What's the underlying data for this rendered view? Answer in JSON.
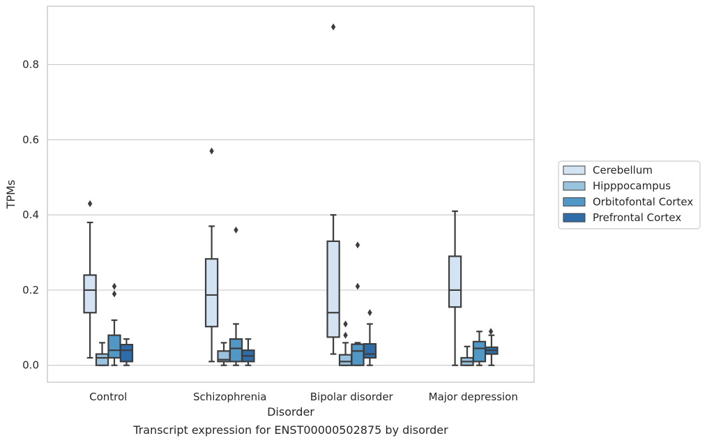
{
  "chart_data": {
    "type": "box",
    "title": "",
    "caption": "Transcript expression for ENST00000502875 by disorder",
    "xlabel": "Disorder",
    "ylabel": "TPMs",
    "ylim": [
      -0.045,
      0.955
    ],
    "yticks": [
      "0.0",
      "0.2",
      "0.4",
      "0.6",
      "0.8"
    ],
    "ytick_values": [
      0.0,
      0.2,
      0.4,
      0.6,
      0.8
    ],
    "grid": "horizontal",
    "legend_position": "right",
    "categories": [
      "Control",
      "Schizophrenia",
      "Bipolar disorder",
      "Major depression"
    ],
    "series": [
      {
        "name": "Cerebellum",
        "color": "#d4e3f3",
        "boxes": [
          {
            "whisker_low": 0.02,
            "q1": 0.14,
            "median": 0.2,
            "q3": 0.24,
            "whisker_high": 0.38,
            "outliers": [
              0.43
            ]
          },
          {
            "whisker_low": 0.01,
            "q1": 0.103,
            "median": 0.187,
            "q3": 0.283,
            "whisker_high": 0.37,
            "outliers": [
              0.57
            ]
          },
          {
            "whisker_low": 0.03,
            "q1": 0.075,
            "median": 0.14,
            "q3": 0.33,
            "whisker_high": 0.4,
            "outliers": [
              0.9
            ]
          },
          {
            "whisker_low": 0.0,
            "q1": 0.155,
            "median": 0.2,
            "q3": 0.29,
            "whisker_high": 0.41,
            "outliers": []
          }
        ]
      },
      {
        "name": "Hipppocampus",
        "color": "#9ac3df",
        "boxes": [
          {
            "whisker_low": 0.0,
            "q1": 0.0,
            "median": 0.02,
            "q3": 0.03,
            "whisker_high": 0.06,
            "outliers": []
          },
          {
            "whisker_low": 0.0,
            "q1": 0.01,
            "median": 0.015,
            "q3": 0.038,
            "whisker_high": 0.06,
            "outliers": []
          },
          {
            "whisker_low": 0.0,
            "q1": 0.0,
            "median": 0.01,
            "q3": 0.028,
            "whisker_high": 0.06,
            "outliers": [
              0.08,
              0.11
            ]
          },
          {
            "whisker_low": 0.0,
            "q1": 0.0,
            "median": 0.01,
            "q3": 0.02,
            "whisker_high": 0.05,
            "outliers": []
          }
        ]
      },
      {
        "name": "Orbitofontal Cortex",
        "color": "#5198c6",
        "boxes": [
          {
            "whisker_low": 0.0,
            "q1": 0.02,
            "median": 0.04,
            "q3": 0.08,
            "whisker_high": 0.12,
            "outliers": [
              0.19,
              0.21
            ]
          },
          {
            "whisker_low": 0.0,
            "q1": 0.01,
            "median": 0.045,
            "q3": 0.07,
            "whisker_high": 0.11,
            "outliers": [
              0.36
            ]
          },
          {
            "whisker_low": 0.0,
            "q1": 0.0,
            "median": 0.038,
            "q3": 0.056,
            "whisker_high": 0.06,
            "outliers": [
              0.21,
              0.32
            ]
          },
          {
            "whisker_low": 0.0,
            "q1": 0.01,
            "median": 0.045,
            "q3": 0.063,
            "whisker_high": 0.09,
            "outliers": []
          }
        ]
      },
      {
        "name": "Prefrontal Cortex",
        "color": "#2f6da9",
        "boxes": [
          {
            "whisker_low": 0.0,
            "q1": 0.01,
            "median": 0.04,
            "q3": 0.055,
            "whisker_high": 0.07,
            "outliers": []
          },
          {
            "whisker_low": 0.0,
            "q1": 0.01,
            "median": 0.025,
            "q3": 0.04,
            "whisker_high": 0.07,
            "outliers": []
          },
          {
            "whisker_low": 0.0,
            "q1": 0.02,
            "median": 0.03,
            "q3": 0.057,
            "whisker_high": 0.11,
            "outliers": [
              0.14
            ]
          },
          {
            "whisker_low": 0.0,
            "q1": 0.03,
            "median": 0.04,
            "q3": 0.048,
            "whisker_high": 0.08,
            "outliers": []
          }
        ],
        "extra_outliers": [
          {
            "category_index": 3,
            "side": "left",
            "value": 0.09
          }
        ]
      }
    ]
  }
}
